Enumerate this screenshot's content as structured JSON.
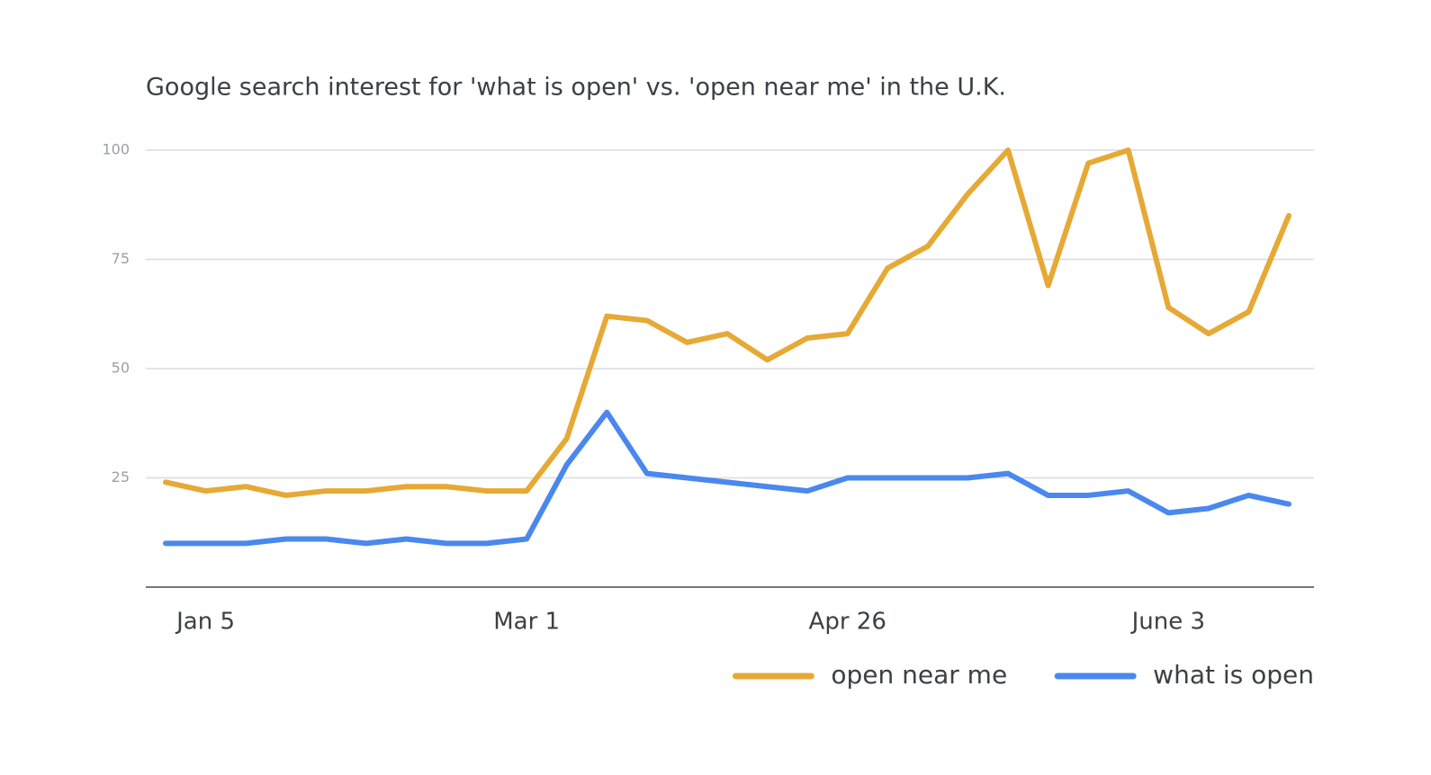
{
  "chart_data": {
    "type": "line",
    "title": "Google search interest for  'what is open' vs. 'open near me' in the U.K.",
    "categories": [
      null,
      "Jan 5",
      null,
      null,
      null,
      null,
      null,
      null,
      null,
      "Mar 1",
      null,
      null,
      null,
      null,
      null,
      null,
      null,
      "Apr 26",
      null,
      null,
      null,
      null,
      null,
      null,
      null,
      "June 3",
      null,
      null,
      null
    ],
    "series": [
      {
        "name": "open near me",
        "color": "#e6a935",
        "values": [
          24,
          22,
          23,
          21,
          22,
          22,
          23,
          23,
          22,
          22,
          34,
          62,
          61,
          56,
          58,
          52,
          57,
          58,
          73,
          78,
          90,
          100,
          69,
          97,
          100,
          64,
          58,
          63,
          85
        ]
      },
      {
        "name": "what is open",
        "color": "#4a88ee",
        "values": [
          10,
          10,
          10,
          11,
          11,
          10,
          11,
          10,
          10,
          11,
          28,
          40,
          26,
          25,
          24,
          23,
          22,
          25,
          25,
          25,
          25,
          26,
          21,
          21,
          22,
          17,
          18,
          21,
          19
        ]
      }
    ],
    "ylim": [
      0,
      100
    ],
    "yticks": [
      25,
      50,
      75,
      100
    ],
    "grid": true,
    "legend": "bottom-right"
  }
}
